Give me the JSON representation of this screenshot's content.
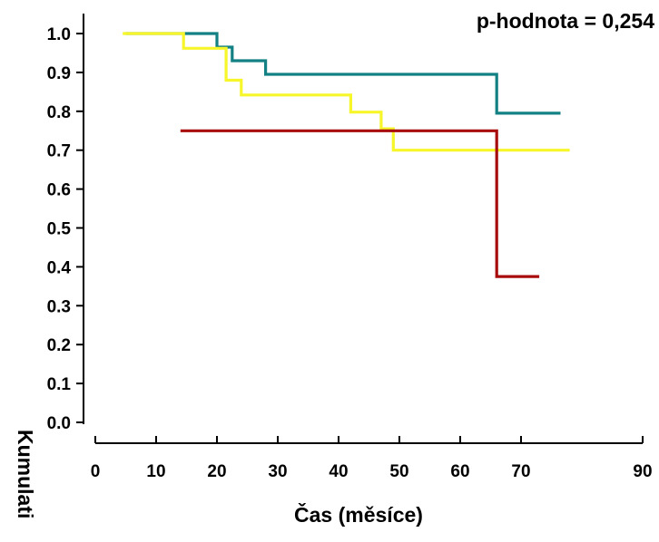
{
  "chart_data": {
    "type": "line",
    "step": true,
    "xlabel": "Čas (měsíce)",
    "ylabel": "Kumulati",
    "annotation": "p-hodnota = 0,254",
    "xlim": [
      0,
      90
    ],
    "ylim": [
      0,
      1.0
    ],
    "x_ticks": [
      "0",
      "10",
      "20",
      "30",
      "40",
      "50",
      "60",
      "70",
      "90"
    ],
    "y_ticks": [
      "0.0",
      "0.1",
      "0.2",
      "0.3",
      "0.4",
      "0.5",
      "0.6",
      "0.7",
      "0.8",
      "0.9",
      "1.0"
    ],
    "grid": false,
    "series": [
      {
        "color": "#138083",
        "points": [
          [
            5,
            1.0
          ],
          [
            20,
            1.0
          ],
          [
            20,
            0.965
          ],
          [
            22.5,
            0.965
          ],
          [
            22.5,
            0.93
          ],
          [
            28,
            0.93
          ],
          [
            28,
            0.895
          ],
          [
            66,
            0.895
          ],
          [
            66,
            0.795
          ],
          [
            76.5,
            0.795
          ]
        ]
      },
      {
        "color": "#f6f62a",
        "points": [
          [
            4.5,
            1.0
          ],
          [
            14.5,
            1.0
          ],
          [
            14.5,
            0.962
          ],
          [
            21.5,
            0.962
          ],
          [
            21.5,
            0.88
          ],
          [
            24,
            0.88
          ],
          [
            24,
            0.842
          ],
          [
            42,
            0.842
          ],
          [
            42,
            0.798
          ],
          [
            47,
            0.798
          ],
          [
            47,
            0.755
          ],
          [
            49,
            0.755
          ],
          [
            49,
            0.7
          ],
          [
            78,
            0.7
          ]
        ]
      },
      {
        "color": "#a80b0b",
        "points": [
          [
            14,
            0.75
          ],
          [
            66,
            0.75
          ],
          [
            66,
            0.375
          ],
          [
            73,
            0.375
          ]
        ]
      }
    ]
  }
}
